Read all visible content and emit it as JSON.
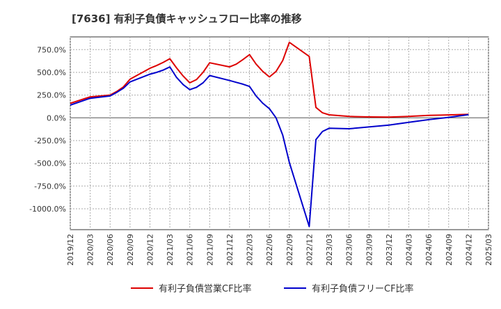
{
  "chart_data": {
    "type": "line",
    "title": "[7636]  有利子負債キャッシュフロー比率の推移",
    "x_ticks": [
      "2019/12",
      "2020/03",
      "2020/06",
      "2020/09",
      "2020/12",
      "2021/03",
      "2021/06",
      "2021/09",
      "2021/12",
      "2022/03",
      "2022/06",
      "2022/09",
      "2022/12",
      "2023/03",
      "2023/06",
      "2023/09",
      "2023/12",
      "2024/03",
      "2024/06",
      "2024/09",
      "2024/12",
      "2025/03"
    ],
    "y_ticks": [
      750,
      500,
      250,
      0,
      -250,
      -500,
      -750,
      -1000
    ],
    "y_tick_labels": [
      "750.0%",
      "500.0%",
      "250.0%",
      "0.0%",
      "-250.0%",
      "-500.0%",
      "-750.0%",
      "-1000.0%"
    ],
    "ylim": [
      -1230,
      890
    ],
    "grid": true,
    "legend_position": "bottom",
    "series": [
      {
        "name": "有利子負債営業CF比率",
        "color": "#dd0000",
        "points": [
          [
            "2019/12",
            160
          ],
          [
            "2020/03",
            230
          ],
          [
            "2020/06",
            250
          ],
          [
            "2020/07",
            290
          ],
          [
            "2020/08",
            340
          ],
          [
            "2020/09",
            425
          ],
          [
            "2020/12",
            545
          ],
          [
            "2021/01",
            575
          ],
          [
            "2021/02",
            610
          ],
          [
            "2021/03",
            650
          ],
          [
            "2021/04",
            550
          ],
          [
            "2021/05",
            460
          ],
          [
            "2021/06",
            385
          ],
          [
            "2021/07",
            420
          ],
          [
            "2021/08",
            500
          ],
          [
            "2021/09",
            605
          ],
          [
            "2021/12",
            560
          ],
          [
            "2022/01",
            590
          ],
          [
            "2022/02",
            640
          ],
          [
            "2022/03",
            695
          ],
          [
            "2022/04",
            590
          ],
          [
            "2022/05",
            510
          ],
          [
            "2022/06",
            450
          ],
          [
            "2022/07",
            510
          ],
          [
            "2022/08",
            630
          ],
          [
            "2022/09",
            830
          ],
          [
            "2022/12",
            675
          ],
          [
            "2023/01",
            115
          ],
          [
            "2023/02",
            55
          ],
          [
            "2023/03",
            33
          ],
          [
            "2023/06",
            15
          ],
          [
            "2023/09",
            10
          ],
          [
            "2023/12",
            8
          ],
          [
            "2024/03",
            15
          ],
          [
            "2024/06",
            27
          ],
          [
            "2024/09",
            32
          ],
          [
            "2024/12",
            38
          ]
        ]
      },
      {
        "name": "有利子負債フリーCF比率",
        "color": "#0000cc",
        "points": [
          [
            "2019/12",
            140
          ],
          [
            "2020/03",
            215
          ],
          [
            "2020/06",
            240
          ],
          [
            "2020/07",
            280
          ],
          [
            "2020/08",
            325
          ],
          [
            "2020/09",
            395
          ],
          [
            "2020/12",
            480
          ],
          [
            "2021/01",
            500
          ],
          [
            "2021/02",
            525
          ],
          [
            "2021/03",
            560
          ],
          [
            "2021/04",
            445
          ],
          [
            "2021/05",
            365
          ],
          [
            "2021/06",
            310
          ],
          [
            "2021/07",
            335
          ],
          [
            "2021/08",
            385
          ],
          [
            "2021/09",
            465
          ],
          [
            "2021/12",
            410
          ],
          [
            "2022/01",
            390
          ],
          [
            "2022/02",
            370
          ],
          [
            "2022/03",
            345
          ],
          [
            "2022/04",
            240
          ],
          [
            "2022/05",
            160
          ],
          [
            "2022/06",
            100
          ],
          [
            "2022/07",
            0
          ],
          [
            "2022/08",
            -190
          ],
          [
            "2022/09",
            -490
          ],
          [
            "2022/12",
            -1195
          ],
          [
            "2023/01",
            -240
          ],
          [
            "2023/02",
            -150
          ],
          [
            "2023/03",
            -115
          ],
          [
            "2023/06",
            -120
          ],
          [
            "2023/09",
            -100
          ],
          [
            "2023/12",
            -80
          ],
          [
            "2024/03",
            -50
          ],
          [
            "2024/06",
            -20
          ],
          [
            "2024/09",
            5
          ],
          [
            "2024/12",
            35
          ]
        ]
      }
    ]
  }
}
